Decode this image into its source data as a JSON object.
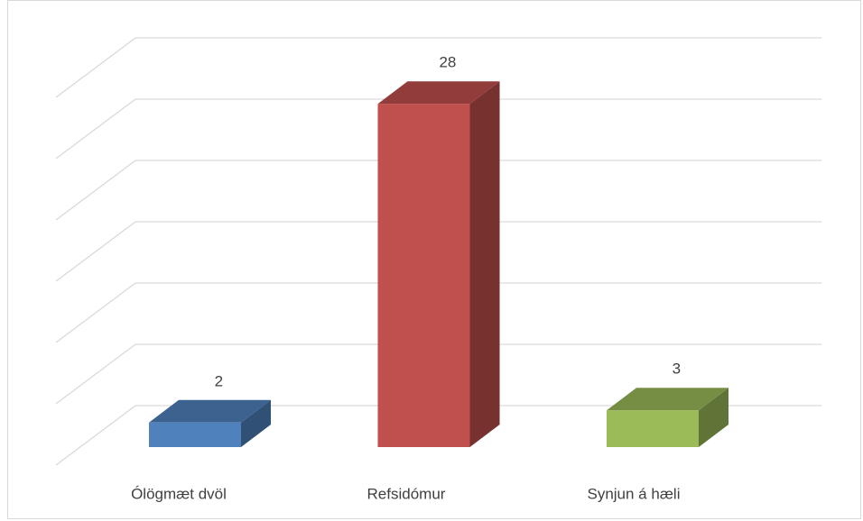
{
  "chart_data": {
    "type": "bar3d",
    "categories": [
      "Ólögmæt dvöl",
      "Refsidómur",
      "Synjun á hæli"
    ],
    "values": [
      2,
      28,
      3
    ],
    "colors": [
      "#4f81bd",
      "#c0504d",
      "#9bbb59"
    ],
    "ylim": [
      0,
      30
    ],
    "yticks": [
      0,
      5,
      10,
      15,
      20,
      25,
      30
    ],
    "grid": true
  }
}
